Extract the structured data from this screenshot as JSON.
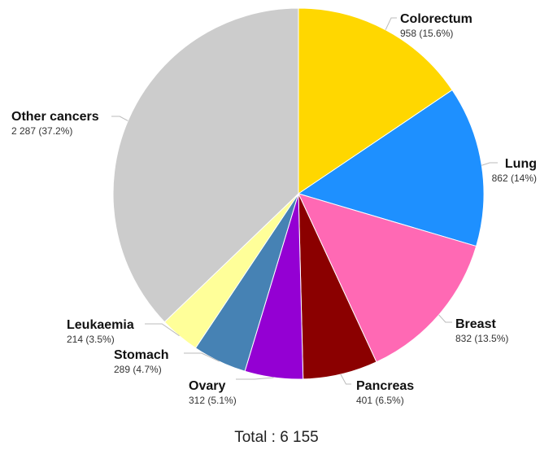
{
  "chart_data": {
    "type": "pie",
    "slices": [
      {
        "name": "Colorectum",
        "value": 958,
        "value_label": "958 (15.6%)",
        "color": "#FFD700"
      },
      {
        "name": "Lung",
        "value": 862,
        "value_label": "862 (14%)",
        "color": "#1E90FF"
      },
      {
        "name": "Breast",
        "value": 832,
        "value_label": "832 (13.5%)",
        "color": "#FF69B4"
      },
      {
        "name": "Pancreas",
        "value": 401,
        "value_label": "401 (6.5%)",
        "color": "#8B0000"
      },
      {
        "name": "Ovary",
        "value": 312,
        "value_label": "312 (5.1%)",
        "color": "#9400D3"
      },
      {
        "name": "Stomach",
        "value": 289,
        "value_label": "289 (4.7%)",
        "color": "#4682B4"
      },
      {
        "name": "Leukaemia",
        "value": 214,
        "value_label": "214 (3.5%)",
        "color": "#FFFF99"
      },
      {
        "name": "Other cancers",
        "value": 2287,
        "value_label": "2 287 (37.2%)",
        "color": "#CCCCCC"
      }
    ],
    "total_label": "Total : 6 155",
    "start": "12 o'clock",
    "direction": "clockwise"
  }
}
